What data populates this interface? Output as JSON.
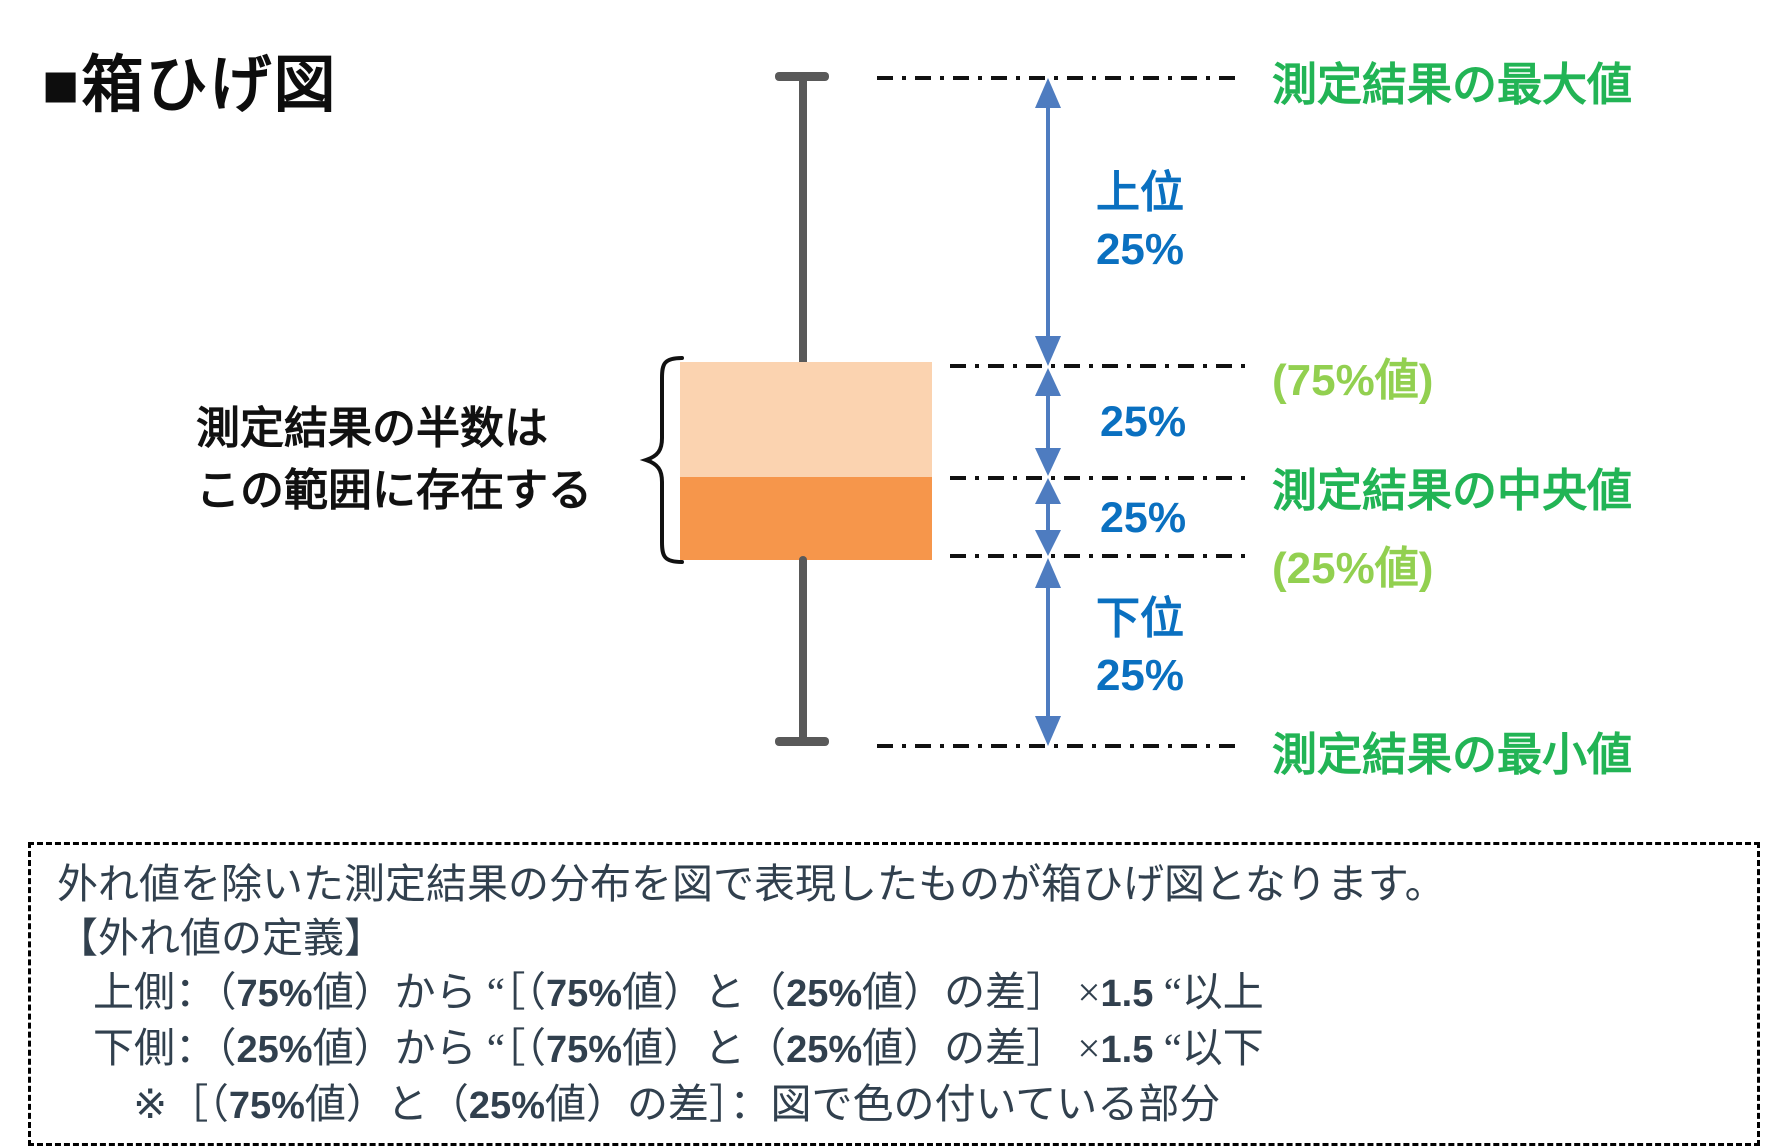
{
  "colors": {
    "box_upper": "#FBD3B0",
    "box_lower": "#F6964B",
    "whisker": "#595959",
    "arrow": "#4E7CC0",
    "blue_text": "#0A70C0",
    "green_dark": "#22B455",
    "green_light": "#92D050",
    "note_text": "#31404E",
    "line_black": "#111111"
  },
  "title": "■箱ひげ図",
  "diagram": {
    "left_note": {
      "line1": "測定結果の半数は",
      "line2": "この範囲に存在する"
    },
    "green_labels": {
      "max": "測定結果の最大値",
      "p75": "(75%値)",
      "median": "測定結果の中央値",
      "p25": "(25%値)",
      "min": "測定結果の最小値"
    },
    "blue_labels": {
      "upper_top": "上位",
      "upper_bottom": "25%",
      "q3": "25%",
      "q2": "25%",
      "lower_top": "下位",
      "lower_bottom": "25%"
    }
  },
  "note_box": {
    "lines": [
      {
        "segments": [
          {
            "t": "外れ値を除いた測定結果の分布を図で表現したものが箱ひげ図となります。"
          }
        ]
      },
      {
        "segments": [
          {
            "t": "【外れ値の定義】"
          }
        ]
      },
      {
        "segments": [
          {
            "t": "上側：（"
          },
          {
            "t": "75%",
            "b": true
          },
          {
            "t": "値）から “［（"
          },
          {
            "t": "75%",
            "b": true
          },
          {
            "t": "値）と（"
          },
          {
            "t": "25%",
            "b": true
          },
          {
            "t": "値）の差］ ×"
          },
          {
            "t": "1.5",
            "b": true
          },
          {
            "t": " “以上"
          }
        ]
      },
      {
        "segments": [
          {
            "t": "下側：（"
          },
          {
            "t": "25%",
            "b": true
          },
          {
            "t": "値）から “［（"
          },
          {
            "t": "75%",
            "b": true
          },
          {
            "t": "値）と（"
          },
          {
            "t": "25%",
            "b": true
          },
          {
            "t": "値）の差］ ×"
          },
          {
            "t": "1.5",
            "b": true
          },
          {
            "t": " “以下"
          }
        ]
      },
      {
        "segments": [
          {
            "t": "※［（"
          },
          {
            "t": "75%",
            "b": true
          },
          {
            "t": "値）と（"
          },
          {
            "t": "25%",
            "b": true
          },
          {
            "t": "値）の差］：図で色の付いている部分"
          }
        ]
      }
    ]
  }
}
